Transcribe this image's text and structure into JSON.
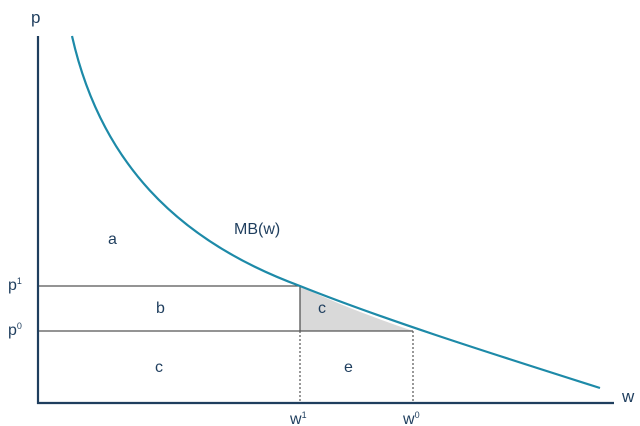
{
  "axes": {
    "y_label": "p",
    "x_label": "w"
  },
  "curve": {
    "label": "MB(w)",
    "color": "#1d8aa8"
  },
  "prices": {
    "p1": {
      "base": "p",
      "sup": "1"
    },
    "p0": {
      "base": "p",
      "sup": "0"
    }
  },
  "quantities": {
    "w1": {
      "base": "w",
      "sup": "1"
    },
    "w0": {
      "base": "w",
      "sup": "0"
    }
  },
  "regions": {
    "a": "a",
    "b": "b",
    "c_triangle": "c",
    "c_lower": "c",
    "e": "e"
  },
  "colors": {
    "axis": "#1f3e5e",
    "guides": "#555555",
    "triangle_fill": "#d9d9d9",
    "text": "#1f3e5e"
  }
}
